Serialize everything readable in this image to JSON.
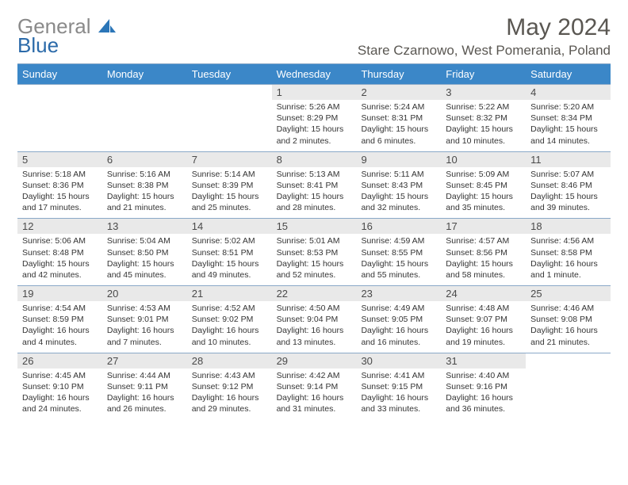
{
  "logo": {
    "word1": "General",
    "word2": "Blue"
  },
  "title": "May 2024",
  "location": "Stare Czarnowo, West Pomerania, Poland",
  "daysOfWeek": [
    "Sunday",
    "Monday",
    "Tuesday",
    "Wednesday",
    "Thursday",
    "Friday",
    "Saturday"
  ],
  "colors": {
    "header_bar": "#3b87c8",
    "divider": "#8aa9c8",
    "daynum_bg": "#e9e9e9",
    "title_color": "#5a5752",
    "logo_gray": "#8a8a8a",
    "logo_blue": "#2b6aa9"
  },
  "weeks": [
    [
      null,
      null,
      null,
      {
        "n": "1",
        "sr": "5:26 AM",
        "ss": "8:29 PM",
        "dl": "15 hours and 2 minutes."
      },
      {
        "n": "2",
        "sr": "5:24 AM",
        "ss": "8:31 PM",
        "dl": "15 hours and 6 minutes."
      },
      {
        "n": "3",
        "sr": "5:22 AM",
        "ss": "8:32 PM",
        "dl": "15 hours and 10 minutes."
      },
      {
        "n": "4",
        "sr": "5:20 AM",
        "ss": "8:34 PM",
        "dl": "15 hours and 14 minutes."
      }
    ],
    [
      {
        "n": "5",
        "sr": "5:18 AM",
        "ss": "8:36 PM",
        "dl": "15 hours and 17 minutes."
      },
      {
        "n": "6",
        "sr": "5:16 AM",
        "ss": "8:38 PM",
        "dl": "15 hours and 21 minutes."
      },
      {
        "n": "7",
        "sr": "5:14 AM",
        "ss": "8:39 PM",
        "dl": "15 hours and 25 minutes."
      },
      {
        "n": "8",
        "sr": "5:13 AM",
        "ss": "8:41 PM",
        "dl": "15 hours and 28 minutes."
      },
      {
        "n": "9",
        "sr": "5:11 AM",
        "ss": "8:43 PM",
        "dl": "15 hours and 32 minutes."
      },
      {
        "n": "10",
        "sr": "5:09 AM",
        "ss": "8:45 PM",
        "dl": "15 hours and 35 minutes."
      },
      {
        "n": "11",
        "sr": "5:07 AM",
        "ss": "8:46 PM",
        "dl": "15 hours and 39 minutes."
      }
    ],
    [
      {
        "n": "12",
        "sr": "5:06 AM",
        "ss": "8:48 PM",
        "dl": "15 hours and 42 minutes."
      },
      {
        "n": "13",
        "sr": "5:04 AM",
        "ss": "8:50 PM",
        "dl": "15 hours and 45 minutes."
      },
      {
        "n": "14",
        "sr": "5:02 AM",
        "ss": "8:51 PM",
        "dl": "15 hours and 49 minutes."
      },
      {
        "n": "15",
        "sr": "5:01 AM",
        "ss": "8:53 PM",
        "dl": "15 hours and 52 minutes."
      },
      {
        "n": "16",
        "sr": "4:59 AM",
        "ss": "8:55 PM",
        "dl": "15 hours and 55 minutes."
      },
      {
        "n": "17",
        "sr": "4:57 AM",
        "ss": "8:56 PM",
        "dl": "15 hours and 58 minutes."
      },
      {
        "n": "18",
        "sr": "4:56 AM",
        "ss": "8:58 PM",
        "dl": "16 hours and 1 minute."
      }
    ],
    [
      {
        "n": "19",
        "sr": "4:54 AM",
        "ss": "8:59 PM",
        "dl": "16 hours and 4 minutes."
      },
      {
        "n": "20",
        "sr": "4:53 AM",
        "ss": "9:01 PM",
        "dl": "16 hours and 7 minutes."
      },
      {
        "n": "21",
        "sr": "4:52 AM",
        "ss": "9:02 PM",
        "dl": "16 hours and 10 minutes."
      },
      {
        "n": "22",
        "sr": "4:50 AM",
        "ss": "9:04 PM",
        "dl": "16 hours and 13 minutes."
      },
      {
        "n": "23",
        "sr": "4:49 AM",
        "ss": "9:05 PM",
        "dl": "16 hours and 16 minutes."
      },
      {
        "n": "24",
        "sr": "4:48 AM",
        "ss": "9:07 PM",
        "dl": "16 hours and 19 minutes."
      },
      {
        "n": "25",
        "sr": "4:46 AM",
        "ss": "9:08 PM",
        "dl": "16 hours and 21 minutes."
      }
    ],
    [
      {
        "n": "26",
        "sr": "4:45 AM",
        "ss": "9:10 PM",
        "dl": "16 hours and 24 minutes."
      },
      {
        "n": "27",
        "sr": "4:44 AM",
        "ss": "9:11 PM",
        "dl": "16 hours and 26 minutes."
      },
      {
        "n": "28",
        "sr": "4:43 AM",
        "ss": "9:12 PM",
        "dl": "16 hours and 29 minutes."
      },
      {
        "n": "29",
        "sr": "4:42 AM",
        "ss": "9:14 PM",
        "dl": "16 hours and 31 minutes."
      },
      {
        "n": "30",
        "sr": "4:41 AM",
        "ss": "9:15 PM",
        "dl": "16 hours and 33 minutes."
      },
      {
        "n": "31",
        "sr": "4:40 AM",
        "ss": "9:16 PM",
        "dl": "16 hours and 36 minutes."
      },
      null
    ]
  ]
}
